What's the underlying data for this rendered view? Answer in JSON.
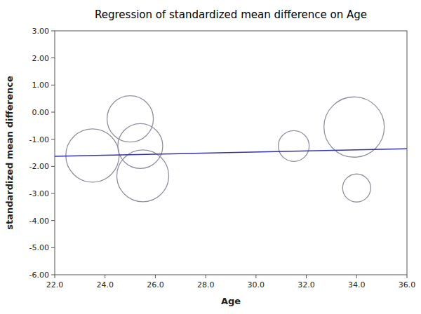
{
  "chart_data": {
    "type": "bubble",
    "title": "Regression of standardized mean difference on Age",
    "xlabel": "Age",
    "ylabel": "standardized mean difference",
    "xlim": [
      22.0,
      36.0
    ],
    "ylim": [
      -6.0,
      3.0
    ],
    "xticks": [
      {
        "value": 22.0,
        "label": "22.0"
      },
      {
        "value": 24.0,
        "label": "24.0"
      },
      {
        "value": 26.0,
        "label": "26.0"
      },
      {
        "value": 28.0,
        "label": "28.0"
      },
      {
        "value": 30.0,
        "label": "30.0"
      },
      {
        "value": 32.0,
        "label": "32.0"
      },
      {
        "value": 34.0,
        "label": "34.0"
      },
      {
        "value": 36.0,
        "label": "36.0"
      }
    ],
    "yticks": [
      {
        "value": 3.0,
        "label": "3.00"
      },
      {
        "value": 2.0,
        "label": "2.00"
      },
      {
        "value": 1.0,
        "label": "1.00"
      },
      {
        "value": 0.0,
        "label": "0.00"
      },
      {
        "value": -1.0,
        "label": "-1.00"
      },
      {
        "value": -2.0,
        "label": "-2.00"
      },
      {
        "value": -3.0,
        "label": "-3.00"
      },
      {
        "value": -4.0,
        "label": "-4.00"
      },
      {
        "value": -5.0,
        "label": "-5.00"
      },
      {
        "value": -6.0,
        "label": "-6.00"
      }
    ],
    "grid": false,
    "series": [
      {
        "type": "bubble",
        "color": "#9090a0",
        "x": [
          23.5,
          25.0,
          25.4,
          25.5,
          31.5,
          33.9,
          34.0
        ],
        "values": [
          -1.6,
          -0.25,
          -1.25,
          -2.35,
          -1.25,
          -0.55,
          -2.8
        ],
        "sizes": [
          38,
          33,
          32,
          37,
          22,
          43,
          20
        ]
      },
      {
        "type": "line",
        "color": "#3333aa",
        "x": [
          22.0,
          36.0
        ],
        "values": [
          -1.63,
          -1.35
        ]
      }
    ]
  }
}
